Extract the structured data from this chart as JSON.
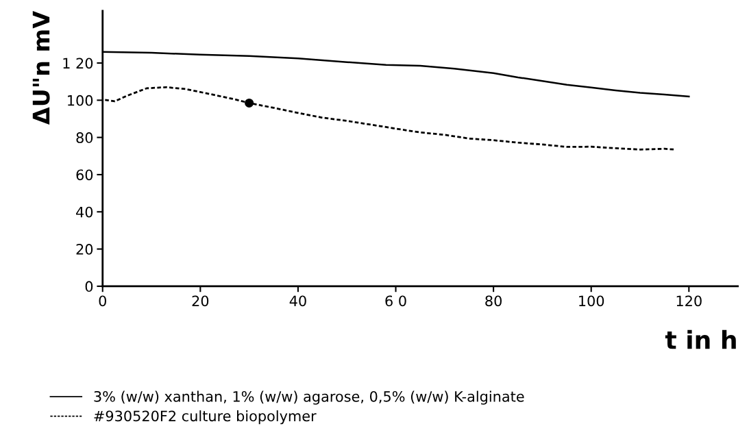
{
  "chart_data": {
    "type": "line",
    "xlabel": "t in h",
    "ylabel": "ΔU\"n mV",
    "xlim": [
      0,
      130
    ],
    "ylim": [
      0,
      148
    ],
    "xticks": [
      0,
      20,
      40,
      {
        "value": 60,
        "label": "6 0"
      },
      80,
      100,
      120
    ],
    "yticks": [
      0,
      20,
      40,
      60,
      80,
      100,
      {
        "value": 120,
        "label": "1 20"
      }
    ],
    "grid": false,
    "legend": "bottom",
    "series": [
      {
        "name": "3% (w/w) xanthan, 1% (w/w) agarose, 0,5% (w/w) K-alginate",
        "color": "#000000",
        "line_style": "solid",
        "x": [
          0,
          10,
          20,
          30,
          40,
          50,
          58,
          65,
          72,
          80,
          85,
          90,
          95,
          100,
          105,
          110,
          115,
          120
        ],
        "values": [
          126,
          125.5,
          124.5,
          123.8,
          122.5,
          120.5,
          119,
          118.5,
          117,
          114.6,
          112.3,
          110.3,
          108.3,
          106.8,
          105.3,
          104,
          103.1,
          102
        ]
      },
      {
        "name": "#930520F2 culture biopolymer",
        "color": "#000000",
        "line_style": "dotted",
        "x": [
          0.5,
          2.5,
          5,
          9,
          13,
          17,
          22,
          27,
          30,
          35,
          40,
          45,
          50,
          57,
          60,
          65,
          70,
          75,
          80,
          85,
          90,
          95,
          100,
          105,
          110,
          115,
          117
        ],
        "values": [
          100.2,
          99.4,
          102.4,
          106.4,
          107,
          106,
          103.3,
          100.5,
          98.5,
          95.9,
          93.2,
          90.6,
          88.9,
          86,
          84.7,
          82.7,
          81.4,
          79.4,
          78.5,
          77.2,
          76.2,
          74.9,
          75,
          74.2,
          73.5,
          73.9,
          73.5
        ]
      },
      {
        "type": "scatter",
        "marker": "circle",
        "color": "#000000",
        "x": [
          30
        ],
        "values": [
          98.5
        ]
      }
    ]
  }
}
